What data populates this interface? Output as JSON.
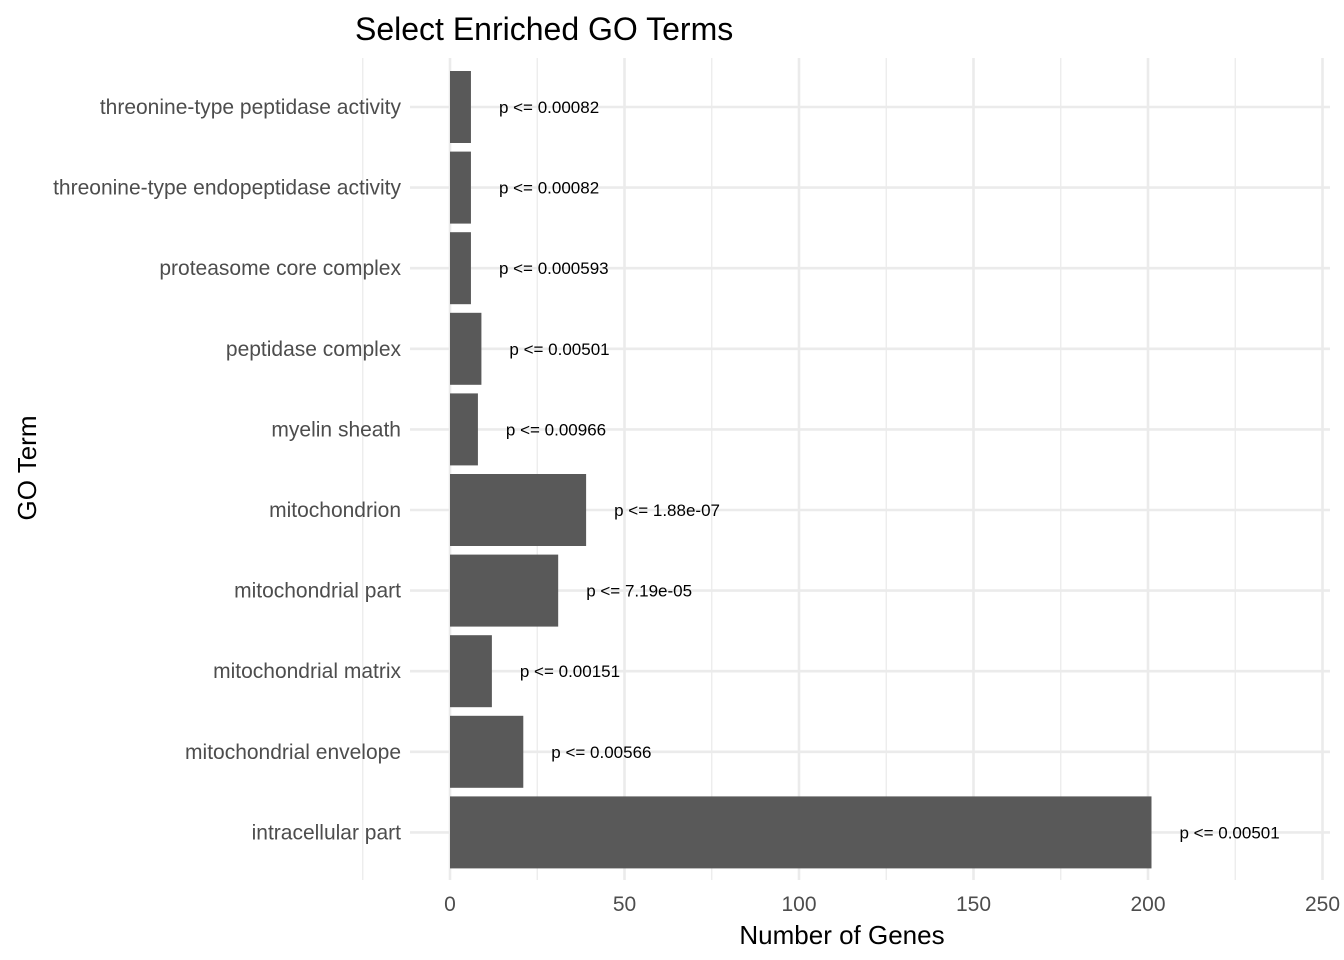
{
  "chart_data": {
    "type": "bar",
    "orientation": "horizontal",
    "title": "Select Enriched GO Terms",
    "xlabel": "Number of Genes",
    "ylabel": "GO Term",
    "xlim": [
      -25,
      252
    ],
    "x_ticks": [
      0,
      50,
      100,
      150,
      200,
      250
    ],
    "x_tick_labels": [
      "0",
      "50",
      "100",
      "150",
      "200",
      "250"
    ],
    "grid": true,
    "legend": "none",
    "bar_color": "#595959",
    "categories": [
      "threonine-type peptidase activity",
      "threonine-type endopeptidase activity",
      "proteasome core complex",
      "peptidase complex",
      "myelin sheath",
      "mitochondrion",
      "mitochondrial part",
      "mitochondrial matrix",
      "mitochondrial envelope",
      "intracellular part"
    ],
    "values": [
      6,
      6,
      6,
      9,
      8,
      39,
      31,
      12,
      21,
      201
    ],
    "annotations": [
      "p <= 0.00082",
      "p <= 0.00082",
      "p <= 0.000593",
      "p <= 0.00501",
      "p <= 0.00966",
      "p <= 1.88e-07",
      "p <= 7.19e-05",
      "p <= 0.00151",
      "p <= 0.00566",
      "p <= 0.00501"
    ]
  }
}
